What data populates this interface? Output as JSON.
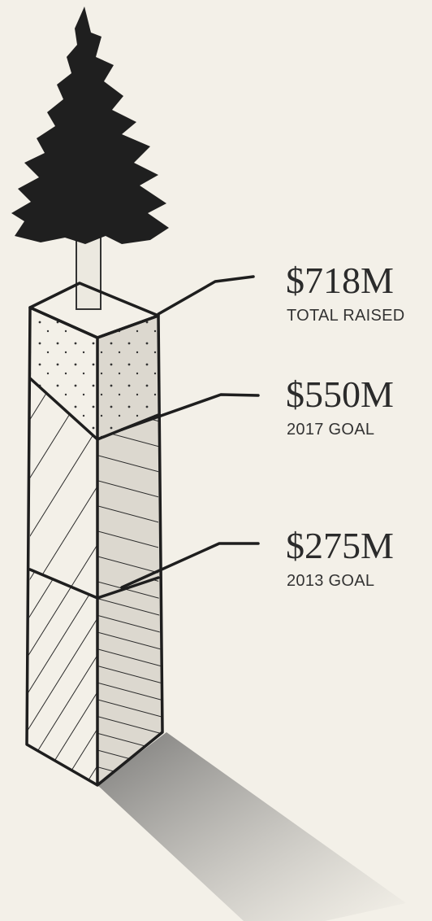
{
  "milestones": [
    {
      "amount": "$718M",
      "caption": "TOTAL RAISED"
    },
    {
      "amount": "$550M",
      "caption": "2017 GOAL"
    },
    {
      "amount": "$275M",
      "caption": "2013 GOAL"
    }
  ]
}
